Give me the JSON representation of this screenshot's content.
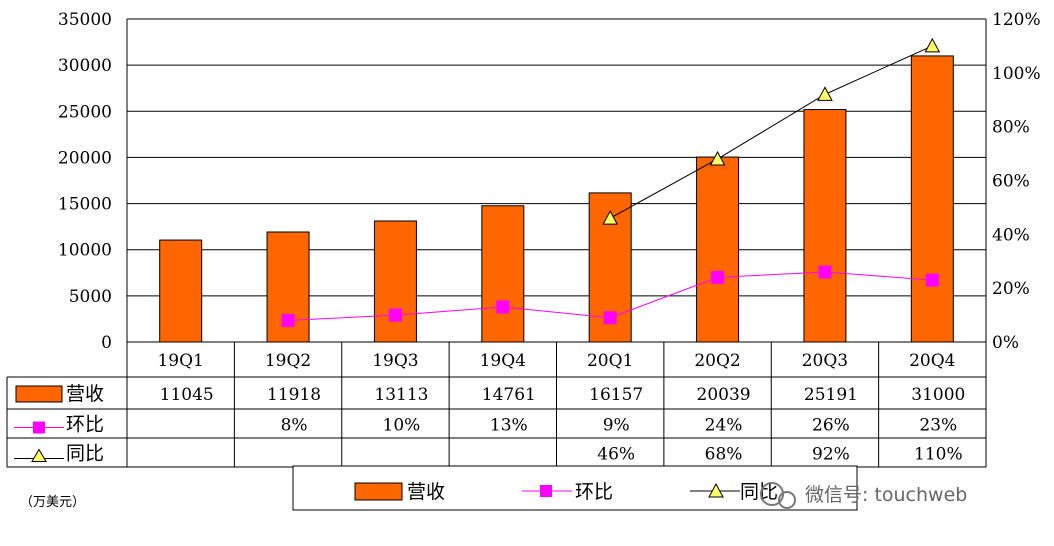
{
  "chart_data": {
    "type": "bar",
    "categories": [
      "19Q1",
      "19Q2",
      "19Q3",
      "19Q4",
      "20Q1",
      "20Q2",
      "20Q3",
      "20Q4"
    ],
    "series": [
      {
        "name": "营收",
        "kind": "bar",
        "axis": "left",
        "color": "#FF6600",
        "values": [
          11045,
          11918,
          13113,
          14761,
          16157,
          20039,
          25191,
          31000
        ]
      },
      {
        "name": "环比",
        "kind": "line",
        "axis": "right",
        "color": "#FF00FF",
        "marker": "square",
        "values": [
          null,
          8,
          10,
          13,
          9,
          24,
          26,
          23
        ]
      },
      {
        "name": "同比",
        "kind": "line",
        "axis": "right",
        "color": "#000000",
        "marker": "triangle",
        "marker_color": "#FFFF66",
        "values": [
          null,
          null,
          null,
          null,
          46,
          68,
          92,
          110
        ]
      }
    ],
    "y_left": {
      "min": 0,
      "max": 35000,
      "ticks": [
        "0",
        "5000",
        "10000",
        "15000",
        "20000",
        "25000",
        "30000",
        "35000"
      ]
    },
    "y_right": {
      "min": 0,
      "max": 120,
      "ticks": [
        "0%",
        "20%",
        "40%",
        "60%",
        "80%",
        "100%",
        "120%"
      ]
    },
    "table_rows": [
      {
        "label": "营收",
        "cells": [
          "11045",
          "11918",
          "13113",
          "14761",
          "16157",
          "20039",
          "25191",
          "31000"
        ]
      },
      {
        "label": "环比",
        "cells": [
          "",
          "8%",
          "10%",
          "13%",
          "9%",
          "24%",
          "26%",
          "23%"
        ]
      },
      {
        "label": "同比",
        "cells": [
          "",
          "",
          "",
          "",
          "46%",
          "68%",
          "92%",
          "110%"
        ]
      }
    ],
    "legend": [
      "营收",
      "环比",
      "同比"
    ],
    "unit_note": "（万美元）",
    "watermark": "微信号: touchweb",
    "grid": true
  }
}
